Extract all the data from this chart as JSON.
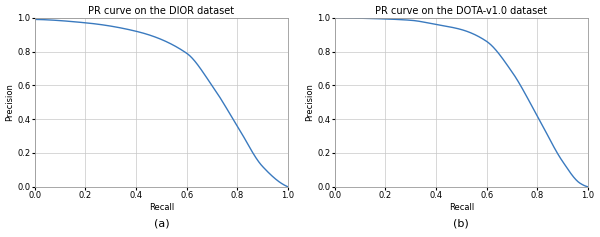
{
  "title_a": "PR curve on the DIOR dataset",
  "title_b": "PR curve on the DOTA-v1.0 dataset",
  "xlabel": "Recall",
  "ylabel": "Precision",
  "label_a": "(a)",
  "label_b": "(b)",
  "xlim": [
    0.0,
    1.0
  ],
  "ylim": [
    0.0,
    1.0
  ],
  "xticks": [
    0.0,
    0.2,
    0.4,
    0.6,
    0.8,
    1.0
  ],
  "yticks": [
    0.0,
    0.2,
    0.4,
    0.6,
    0.8,
    1.0
  ],
  "line_color": "#3a7abf",
  "line_width": 1.0,
  "background_color": "#ffffff",
  "grid_color": "#c8c8c8",
  "title_fontsize": 7,
  "label_fontsize": 6,
  "tick_fontsize": 6,
  "sublabel_fontsize": 8,
  "spine_color": "#999999"
}
